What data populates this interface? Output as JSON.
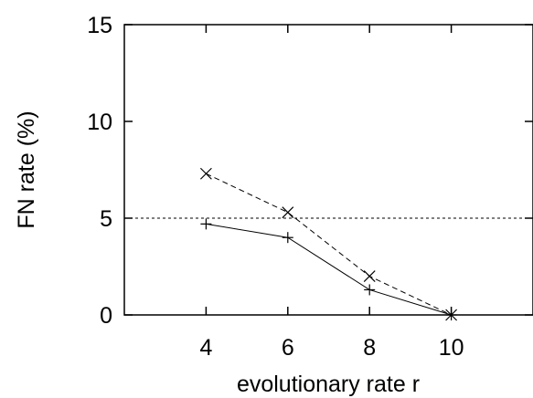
{
  "chart_data": {
    "type": "line",
    "xlabel": "evolutionary rate r",
    "ylabel": "FN rate (%)",
    "xlim": [
      2,
      12
    ],
    "ylim": [
      0,
      15
    ],
    "x_ticks": [
      4,
      6,
      8,
      10
    ],
    "y_ticks": [
      0,
      5,
      10,
      15
    ],
    "grid": false,
    "series": [
      {
        "marker": "x",
        "line_style": "dashed",
        "x": [
          4,
          6,
          8,
          10
        ],
        "values": [
          7.3,
          5.3,
          2.0,
          0.0
        ]
      },
      {
        "marker": "+",
        "line_style": "solid",
        "x": [
          4,
          6,
          8,
          10
        ],
        "values": [
          4.7,
          4.0,
          1.3,
          0.0
        ]
      }
    ],
    "reference_line": {
      "y": 5,
      "line_style": "dotted"
    }
  }
}
